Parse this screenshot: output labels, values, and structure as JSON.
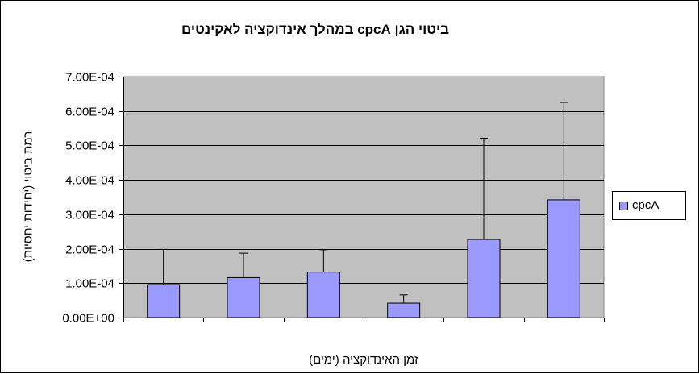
{
  "colors": {
    "plot_bg": "#c0c0c0",
    "bar_fill": "#9999ff",
    "grid": "#000000"
  },
  "chart_data": {
    "type": "bar",
    "title": "ביטוי הגן cpcA במהלך אינדוקציה לאקינטים",
    "xlabel": "זמן האינדוקציה (ימים)",
    "ylabel": "רמת ביטוי (יחידות יחסיות)",
    "ylim": [
      0,
      0.0007
    ],
    "yticks": [
      0,
      0.0001,
      0.0002,
      0.0003,
      0.0004,
      0.0005,
      0.0006,
      0.0007
    ],
    "ytick_labels": [
      "0.00E+00",
      "1.00E-04",
      "2.00E-04",
      "3.00E-04",
      "4.00E-04",
      "5.00E-04",
      "6.00E-04",
      "7.00E-04"
    ],
    "grid": "horizontal",
    "legend_position": "right",
    "series": [
      {
        "name": "cpcA",
        "values": [
          9.6e-05,
          0.000116,
          0.000132,
          4.2e-05,
          0.000227,
          0.000342
        ],
        "error_upper": [
          0.000198,
          0.000187,
          0.000197,
          6.6e-05,
          0.000521,
          0.000625
        ]
      }
    ]
  }
}
